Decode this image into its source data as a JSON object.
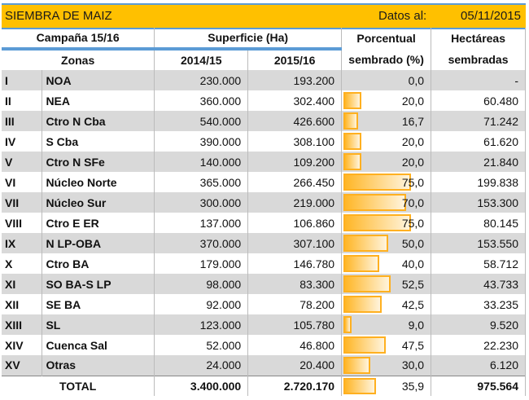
{
  "title": "SIEMBRA DE MAIZ",
  "date_label": "Datos al:",
  "date_value": "05/11/2015",
  "headers": {
    "campaign": "Campaña 15/16",
    "surface": "Superficie (Ha)",
    "pct1": "Porcentual",
    "pct2": "sembrado (%)",
    "ha1": "Hectáreas",
    "ha2": "sembradas",
    "zones": "Zonas",
    "y1": "2014/15",
    "y2": "2015/16"
  },
  "bar_color": "#FFB020",
  "rows": [
    {
      "n": "I",
      "zone": "NOA",
      "a": "230.000",
      "b": "193.200",
      "pct": "0,0",
      "p": 0,
      "ha": "-"
    },
    {
      "n": "II",
      "zone": "NEA",
      "a": "360.000",
      "b": "302.400",
      "pct": "20,0",
      "p": 20,
      "ha": "60.480"
    },
    {
      "n": "III",
      "zone": "Ctro N Cba",
      "a": "540.000",
      "b": "426.600",
      "pct": "16,7",
      "p": 16.7,
      "ha": "71.242"
    },
    {
      "n": "IV",
      "zone": "S Cba",
      "a": "390.000",
      "b": "308.100",
      "pct": "20,0",
      "p": 20,
      "ha": "61.620"
    },
    {
      "n": "V",
      "zone": "Ctro N SFe",
      "a": "140.000",
      "b": "109.200",
      "pct": "20,0",
      "p": 20,
      "ha": "21.840"
    },
    {
      "n": "VI",
      "zone": "Núcleo Norte",
      "a": "365.000",
      "b": "266.450",
      "pct": "75,0",
      "p": 75,
      "ha": "199.838"
    },
    {
      "n": "VII",
      "zone": "Núcleo Sur",
      "a": "300.000",
      "b": "219.000",
      "pct": "70,0",
      "p": 70,
      "ha": "153.300"
    },
    {
      "n": "VIII",
      "zone": "Ctro E ER",
      "a": "137.000",
      "b": "106.860",
      "pct": "75,0",
      "p": 75,
      "ha": "80.145"
    },
    {
      "n": "IX",
      "zone": "N LP-OBA",
      "a": "370.000",
      "b": "307.100",
      "pct": "50,0",
      "p": 50,
      "ha": "153.550"
    },
    {
      "n": "X",
      "zone": "Ctro BA",
      "a": "179.000",
      "b": "146.780",
      "pct": "40,0",
      "p": 40,
      "ha": "58.712"
    },
    {
      "n": "XI",
      "zone": "SO BA-S LP",
      "a": "98.000",
      "b": "83.300",
      "pct": "52,5",
      "p": 52.5,
      "ha": "43.733"
    },
    {
      "n": "XII",
      "zone": "SE BA",
      "a": "92.000",
      "b": "78.200",
      "pct": "42,5",
      "p": 42.5,
      "ha": "33.235"
    },
    {
      "n": "XIII",
      "zone": "SL",
      "a": "123.000",
      "b": "105.780",
      "pct": "9,0",
      "p": 9,
      "ha": "9.520"
    },
    {
      "n": "XIV",
      "zone": "Cuenca Sal",
      "a": "52.000",
      "b": "46.800",
      "pct": "47,5",
      "p": 47.5,
      "ha": "22.230"
    },
    {
      "n": "XV",
      "zone": "Otras",
      "a": "24.000",
      "b": "20.400",
      "pct": "30,0",
      "p": 30,
      "ha": "6.120"
    }
  ],
  "total": {
    "label": "TOTAL",
    "a": "3.400.000",
    "b": "2.720.170",
    "pct": "35,9",
    "p": 35.9,
    "ha": "975.564"
  }
}
